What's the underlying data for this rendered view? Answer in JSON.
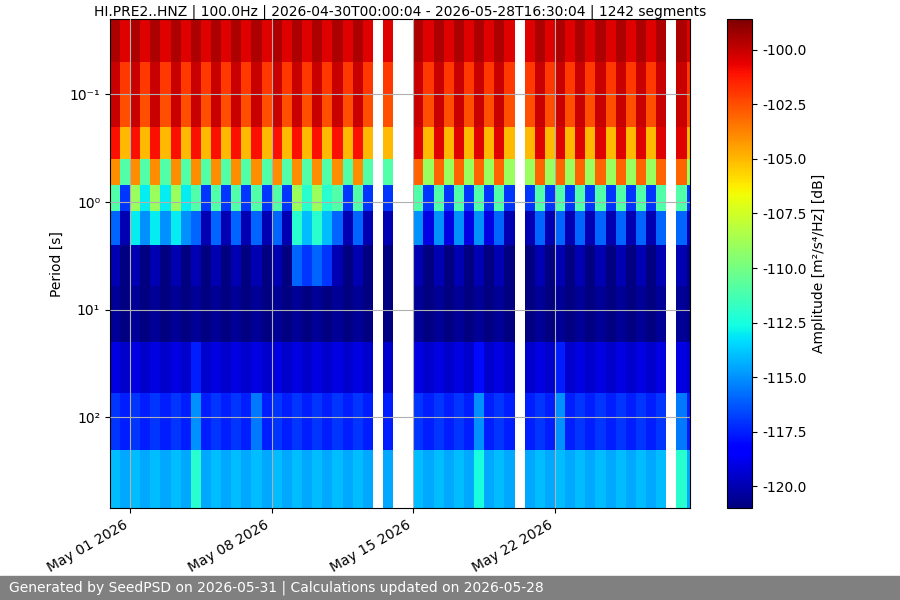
{
  "chart_data": {
    "type": "heatmap",
    "title": "HI.PRE2..HNZ | 100.0Hz | 2026-04-30T00:00:04 - 2026-05-28T16:30:04 | 1242 segments",
    "y_label": "Period [s]",
    "footer": "Generated by SeedPSD on 2026-05-31 | Calculations updated on 2026-05-28",
    "log": "y",
    "grid": true,
    "xlim": [
      "2026-04-30T00:00",
      "2026-05-28T16:30"
    ],
    "xticks": [
      {
        "value": "2026-05-01",
        "label": "May 01 2026"
      },
      {
        "value": "2026-05-08",
        "label": "May 08 2026"
      },
      {
        "value": "2026-05-15",
        "label": "May 15 2026"
      },
      {
        "value": "2026-05-22",
        "label": "May 22 2026"
      }
    ],
    "ylim": [
      700,
      0.02
    ],
    "yticks": [
      {
        "value": 0.1,
        "label": "10⁻¹"
      },
      {
        "value": 1,
        "label": "10⁰"
      },
      {
        "value": 10,
        "label": "10¹"
      },
      {
        "value": 100,
        "label": "10²"
      }
    ],
    "colorbar": {
      "label": "Amplitude [m²/s⁴/Hz] [dB]",
      "range": [
        -121,
        -98.6
      ],
      "ticks": [
        {
          "value": -120,
          "label": "-120.0"
        },
        {
          "value": -117.5,
          "label": "-117.5"
        },
        {
          "value": -115,
          "label": "-115.0"
        },
        {
          "value": -112.5,
          "label": "-112.5"
        },
        {
          "value": -110,
          "label": "-110.0"
        },
        {
          "value": -107.5,
          "label": "-107.5"
        },
        {
          "value": -105,
          "label": "-105.0"
        },
        {
          "value": -102.5,
          "label": "-102.5"
        },
        {
          "value": -100,
          "label": "-100.0"
        }
      ]
    },
    "x": [
      "2026-04-30T00:00",
      "2026-04-30T12:00",
      "2026-05-01T00:00",
      "2026-05-01T12:00",
      "2026-05-02T00:00",
      "2026-05-02T12:00",
      "2026-05-03T00:00",
      "2026-05-03T12:00",
      "2026-05-04T00:00",
      "2026-05-04T12:00",
      "2026-05-05T00:00",
      "2026-05-05T12:00",
      "2026-05-06T00:00",
      "2026-05-06T12:00",
      "2026-05-07T00:00",
      "2026-05-07T12:00",
      "2026-05-08T00:00",
      "2026-05-08T12:00",
      "2026-05-09T00:00",
      "2026-05-09T12:00",
      "2026-05-10T00:00",
      "2026-05-10T12:00",
      "2026-05-11T00:00",
      "2026-05-11T12:00",
      "2026-05-12T00:00",
      "2026-05-12T12:00",
      "2026-05-13T00:00",
      "2026-05-13T12:00",
      "2026-05-14T00:00",
      "2026-05-14T12:00",
      "2026-05-15T00:00",
      "2026-05-15T12:00",
      "2026-05-16T00:00",
      "2026-05-16T12:00",
      "2026-05-17T00:00",
      "2026-05-17T12:00",
      "2026-05-18T00:00",
      "2026-05-18T12:00",
      "2026-05-19T00:00",
      "2026-05-19T12:00",
      "2026-05-20T00:00",
      "2026-05-20T12:00",
      "2026-05-21T00:00",
      "2026-05-21T12:00",
      "2026-05-22T00:00",
      "2026-05-22T12:00",
      "2026-05-23T00:00",
      "2026-05-23T12:00",
      "2026-05-24T00:00",
      "2026-05-24T12:00",
      "2026-05-25T00:00",
      "2026-05-25T12:00",
      "2026-05-26T00:00",
      "2026-05-26T12:00",
      "2026-05-27T00:00",
      "2026-05-27T12:00",
      "2026-05-28T00:00",
      "2026-05-28T12:00",
      "2026-05-28T16:30"
    ],
    "y": [
      0.02,
      0.05,
      0.1,
      0.2,
      0.4,
      0.7,
      1.2,
      2.5,
      6,
      20,
      60,
      200,
      700
    ],
    "cells": [
      [
        -99.5,
        -100.5,
        -99.5,
        -100.5,
        -99.5,
        -100.5,
        -99.5,
        -100.5,
        -99.5,
        -100.5,
        -99.5,
        -100.5,
        -99.5,
        -100.5,
        -99.5,
        -100.5,
        -99.5,
        -100.5,
        -99.5,
        -100.5,
        -99.5,
        -100.5,
        -99.5,
        -100.5,
        -99.5,
        -100.5,
        null,
        -100.5,
        null,
        null,
        -99.5,
        -100.5,
        -99.5,
        -100.5,
        -99.5,
        -100.5,
        -99.5,
        -100.5,
        -99.5,
        -100.5,
        null,
        -100.5,
        -99.5,
        -100.5,
        -99.5,
        -100.5,
        -99.5,
        -100.5,
        -99.5,
        -100.5,
        -99.5,
        -100.5,
        -99.5,
        -100.5,
        -99.5,
        null,
        -99.5,
        -100.5
      ],
      [
        -100,
        -102,
        -100,
        -102,
        -100,
        -102,
        -100,
        -102,
        -100,
        -102,
        -100,
        -102,
        -100,
        -102,
        -100,
        -102,
        -100,
        -102,
        -100,
        -102,
        -100,
        -102,
        -100,
        -102,
        -100,
        -102,
        null,
        -102,
        null,
        null,
        -100,
        -102,
        -100,
        -102,
        -100,
        -102,
        -100,
        -102,
        -100,
        -102,
        null,
        -102,
        -100,
        -102,
        -100,
        -102,
        -100,
        -102,
        -100,
        -102,
        -100,
        -102,
        -100,
        -102,
        -100,
        null,
        -100,
        -102
      ],
      [
        -100,
        -102.5,
        -100,
        -102.5,
        -100,
        -102.5,
        -100,
        -102.5,
        -100,
        -102.5,
        -100,
        -102.5,
        -100,
        -102.5,
        -100,
        -102.5,
        -100,
        -102.5,
        -100,
        -102.5,
        -100,
        -102.5,
        -100,
        -102.5,
        -100,
        -102.5,
        null,
        -102.5,
        null,
        null,
        -100,
        -102.5,
        -100,
        -102.5,
        -100,
        -102.5,
        -100,
        -102.5,
        -100,
        -102.5,
        null,
        -102.5,
        -100,
        -102.5,
        -100,
        -102.5,
        -100,
        -102.5,
        -100,
        -102.5,
        -100,
        -102.5,
        -100,
        -102.5,
        -100,
        null,
        -100,
        -102.5
      ],
      [
        -101,
        -105,
        -101,
        -105,
        -101,
        -105,
        -101,
        -105,
        -101,
        -105,
        -101,
        -105,
        -101,
        -105,
        -101,
        -105,
        -101,
        -105,
        -101,
        -105,
        -101,
        -105,
        -101,
        -105,
        -101,
        -105,
        null,
        -105,
        null,
        null,
        -100.5,
        -105,
        -100.5,
        -105,
        -100.5,
        -105,
        -100.5,
        -105,
        -100.5,
        -105,
        null,
        -105,
        -100.5,
        -105,
        -100.5,
        -105,
        -100.5,
        -105,
        -100.5,
        -105,
        -100.5,
        -105,
        -100.5,
        -105,
        -100.5,
        null,
        -100.5,
        -105
      ],
      [
        -104,
        -111,
        -104,
        -111,
        -104,
        -111,
        -104,
        -111,
        -104,
        -111,
        -104,
        -111,
        -104,
        -111,
        -104,
        -111,
        -104,
        -111,
        -104,
        -111,
        -104,
        -111,
        -104,
        -111,
        -104,
        -111,
        null,
        -111,
        null,
        null,
        -103,
        -109,
        -103,
        -109,
        -103,
        -109,
        -103,
        -109,
        -103,
        -109,
        null,
        -109,
        -103,
        -109,
        -103,
        -109,
        -103,
        -109,
        -103,
        -109,
        -103,
        -109,
        -103,
        -109,
        -103,
        null,
        -103,
        -109
      ],
      [
        -111,
        -117,
        -109,
        -113,
        -109,
        -113,
        -109,
        -113,
        -111,
        -117,
        -111,
        -117,
        -111,
        -117,
        -111,
        -117,
        -111,
        -117,
        -109,
        -112,
        -109,
        -112,
        -111,
        -117,
        -111,
        -117,
        null,
        -117,
        null,
        null,
        -111,
        -117,
        -111,
        -117,
        -111,
        -117,
        -111,
        -117,
        -111,
        -117,
        null,
        -117,
        -111,
        -117,
        -111,
        -117,
        -111,
        -117,
        -111,
        -117,
        -111,
        -117,
        -111,
        -117,
        -111,
        null,
        -111,
        -117
      ],
      [
        -116,
        -120,
        -113,
        -115,
        -113,
        -115,
        -113,
        -115,
        -116,
        -120,
        -116,
        -120,
        -116,
        -120,
        -116,
        -120,
        -116,
        -120,
        -112,
        -114,
        -112,
        -114,
        -116,
        -120,
        -116,
        -120,
        null,
        -120,
        null,
        null,
        -115,
        -119,
        -115,
        -119,
        -115,
        -119,
        -115,
        -119,
        -116,
        -120,
        null,
        -120,
        -116,
        -120,
        -116,
        -120,
        -116,
        -120,
        -116,
        -120,
        -116,
        -120,
        -116,
        -120,
        -116,
        null,
        -116,
        -120
      ],
      [
        -120,
        -121,
        -120,
        -121,
        -120,
        -121,
        -120,
        -121,
        -120,
        -121,
        -120,
        -121,
        -120,
        -121,
        -120,
        -121,
        -120,
        -121,
        -116,
        -117,
        -116,
        -117,
        -120,
        -121,
        -120,
        -121,
        null,
        -121,
        null,
        null,
        -120,
        -121,
        -120,
        -121,
        -120,
        -121,
        -120,
        -121,
        -120,
        -121,
        null,
        -121,
        -120,
        -121,
        -120,
        -121,
        -120,
        -121,
        -120,
        -121,
        -120,
        -121,
        -120,
        -121,
        -120,
        null,
        -120,
        -121
      ],
      [
        -120.5,
        -121,
        -120.5,
        -121,
        -120.5,
        -121,
        -120.5,
        -121,
        -120.5,
        -121,
        -120.5,
        -121,
        -120.5,
        -121,
        -120.5,
        -121,
        -120.5,
        -121,
        -120.5,
        -121,
        -120.5,
        -121,
        -120.5,
        -121,
        -120.5,
        -121,
        null,
        -121,
        null,
        null,
        -120.5,
        -121,
        -120.5,
        -121,
        -120.5,
        -121,
        -120.5,
        -121,
        -120.5,
        -121,
        null,
        -121,
        -120.5,
        -121,
        -120.5,
        -121,
        -120.5,
        -121,
        -120.5,
        -121,
        -120.5,
        -121,
        -120.5,
        -121,
        -120.5,
        null,
        -120.5,
        -121
      ],
      [
        -119,
        -119.5,
        -119,
        -119.5,
        -119,
        -119.5,
        -119,
        -119.5,
        -117.5,
        -119.5,
        -119,
        -119.5,
        -119,
        -119.5,
        -119,
        -119.5,
        -119,
        -119.5,
        -119,
        -119.5,
        -119,
        -119.5,
        -119,
        -119.5,
        -119,
        -119.5,
        null,
        -119.5,
        null,
        null,
        -119,
        -119.5,
        -119,
        -119.5,
        -119,
        -119.5,
        -118,
        -119.5,
        -119,
        -119.5,
        null,
        -119.5,
        -119,
        -119.5,
        -117.5,
        -119.5,
        -119,
        -119.5,
        -119,
        -119.5,
        -119,
        -119.5,
        -119,
        -119.5,
        -119,
        null,
        -119,
        -119.5
      ],
      [
        -117,
        -117.5,
        -117,
        -117.5,
        -117,
        -117.5,
        -117,
        -117.5,
        -115,
        -117.5,
        -117,
        -117.5,
        -117,
        -117.5,
        -115.5,
        -117.5,
        -117,
        -117.5,
        -117,
        -117.5,
        -117,
        -117.5,
        -117,
        -117.5,
        -117,
        -117.5,
        null,
        -117.5,
        null,
        null,
        -117,
        -117.5,
        -117,
        -117.5,
        -117,
        -117.5,
        -115,
        -117.5,
        -117,
        -117.5,
        null,
        -117.5,
        -117,
        -117.5,
        -115,
        -117.5,
        -117,
        -117.5,
        -117,
        -117.5,
        -117,
        -117.5,
        -117,
        -117.5,
        -117,
        null,
        -115.5,
        -117.5
      ],
      [
        -114,
        -114.5,
        -114,
        -114.5,
        -114,
        -114.5,
        -114,
        -114.5,
        -112,
        -114.5,
        -114,
        -114.5,
        -114,
        -114.5,
        -114,
        -114.5,
        -114,
        -114.5,
        -114,
        -114.5,
        -114,
        -114.5,
        -114,
        -114.5,
        -114,
        -114.5,
        null,
        -114.5,
        null,
        null,
        -114,
        -114.5,
        -114,
        -114.5,
        -114,
        -114.5,
        -112.5,
        -114.5,
        -114,
        -114.5,
        null,
        -114.5,
        -114,
        -114.5,
        -114,
        -114.5,
        -114,
        -114.5,
        -114,
        -114.5,
        -114,
        -114.5,
        -114,
        -114.5,
        -114,
        null,
        -112,
        -114.5
      ]
    ]
  }
}
